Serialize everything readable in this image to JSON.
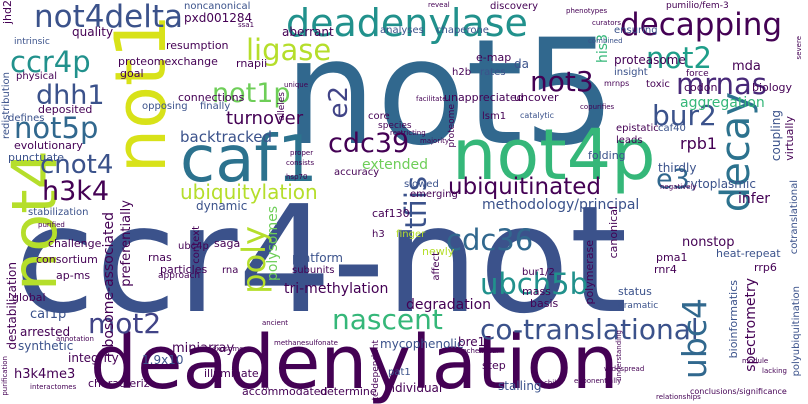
{
  "words": {
    "ccr4_not": "ccr4-not",
    "not5": "not5",
    "deadenylation": "deadenylation",
    "not4p": "not4p",
    "caf1": "caf1",
    "not1": "not1",
    "not4": "not4",
    "deadenylase": "deadenylase",
    "not4delta": "not4delta",
    "decapping": "decapping",
    "ccr4p": "ccr4p",
    "ligase": "ligase",
    "not2": "not2",
    "mrnas": "mrnas",
    "not3": "not3",
    "not1p": "not1p",
    "dhh1": "dhh1",
    "not5p": "not5p",
    "cdc39": "cdc39",
    "e2": "e2",
    "bur2": "bur2",
    "decay": "decay",
    "cnot4": "cnot4",
    "h3k4": "h3k4",
    "ubiquitinated": "ubiquitinated",
    "e3": "e3",
    "cdc36": "cdc36",
    "tfiis": "tfiis",
    "poly": "poly",
    "ubiquitylation": "ubiquitylation",
    "ubch5b": "ubch5b",
    "nascent": "nascent",
    "co_translational": "co-translational",
    "mot2": "mot2",
    "elongation": "elongation",
    "ubc4": "ubc4",
    "mrna": "mrna",
    "mrna_hyphen": "m-rna",
    "turnover": "turnover",
    "backtracked": "backtracked",
    "pxd001284": "pxd001284",
    "noncanonical": "noncanonical",
    "quality": "quality",
    "resumption": "resumption",
    "proteomexchange": "proteomexchange",
    "aberrant": "aberrant",
    "analyses": "analyses",
    "chaperone": "chaperone",
    "discovery": "discovery",
    "ensuring": "ensuring",
    "proteasome": "proteasome",
    "mda": "mda",
    "his3": "his3",
    "aggregation": "aggregation",
    "rpb1": "rpb1",
    "caf40": "caf40",
    "polysomes": "polysomes",
    "extended": "extended",
    "methodology_principal": "methodology/principal",
    "ribosome_associated": "ribosome-associated",
    "preferentially": "preferentially",
    "dynamic": "dynamic",
    "caf130": "caf130",
    "nonstop": "nonstop",
    "heat_repeat": "heat-repeat",
    "infer": "infer",
    "cytoplasmic": "cytoplasmic",
    "thirdly": "thirdly",
    "folding": "folding",
    "canonical": "canonical",
    "pma1": "pma1",
    "rnr4": "rnr4",
    "rrp6": "rrp6",
    "status": "status",
    "dramatic": "dramatic",
    "bioinformatics": "bioinformatics",
    "spectrometry": "spectrometry",
    "tri_methylation": "tri-methylation",
    "degradation": "degradation",
    "mycophenolic": "mycophenolic",
    "bre1": "bre1",
    "step": "step",
    "pat1": "pat1",
    "stalling": "stalling",
    "individual": "individual",
    "determine": "determine",
    "accommodated": "accommodated",
    "miniarray": "miniarray",
    "one_point_nine": "1.9x10",
    "illuminate": "illuminate",
    "characterize": "characterize",
    "h3k4me3": "h3k4me3",
    "integrity": "integrity",
    "synthetic": "synthetic",
    "arrested": "arrested",
    "caf1p": "caf1p",
    "destabilization": "destabilization",
    "ap_ms": "ap-ms",
    "consortium": "consortium",
    "challenge": "challenge",
    "global": "global",
    "stabilization": "stabilization",
    "punctuate": "punctuate",
    "evolutionary": "evolutionary",
    "deposited": "deposited",
    "defines": "defines",
    "physical": "physical",
    "redistribution": "redistribution",
    "intrinsic": "intrinsic",
    "jhd2": "jhd2",
    "rnapii": "rnapii",
    "goal": "goal",
    "connections": "connections",
    "finally": "finally",
    "opposing": "opposing",
    "e_map": "e-map",
    "rates": "rates",
    "h2b": "h2b",
    "da": "da",
    "unappreciated": "unappreciated",
    "uncover": "uncover",
    "lsm1": "lsm1",
    "insight": "insight",
    "force": "force",
    "toxic": "toxic",
    "codon": "codon",
    "biology": "biology",
    "epistatic": "epistatic",
    "leads": "leads",
    "coupling": "coupling",
    "virtually": "virtually",
    "polyubiquitination": "polyubiquitination",
    "cotranslational": "cotranslational",
    "ubc4p": "ubc4p",
    "rnas": "rnas",
    "particles": "particles",
    "saga": "saga",
    "context": "context",
    "rna": "rna",
    "platform": "platform",
    "subunits": "subunits",
    "h3": "h3",
    "finger": "finger",
    "newly": "newly",
    "affect": "affect",
    "slowed": "slowed",
    "emerging": "emerging",
    "accuracy": "accuracy",
    "polymerase": "polymerase",
    "bur1_2": "bur1/2",
    "mass": "mass",
    "basis": "basis",
    "tc_dependent": "tc-dependent",
    "core": "core",
    "approach": "approach",
    "pumilio": "pumilio/fem-3",
    "mrnps": "mrnps",
    "alleles": "alleles",
    "proteome": "proteome",
    "species": "species",
    "catalytic": "catalytic",
    "copurifies": "copurifies",
    "combined": "combined",
    "curators": "curators",
    "phenotypes": "phenotypes",
    "severe": "severe",
    "ssa1": "ssa1",
    "unique": "unique",
    "restricting": "restricting",
    "majority": "majority",
    "consists": "consists",
    "hsp70": "hsp70",
    "purified": "purified",
    "negatively": "negatively",
    "module": "module",
    "lacking": "lacking",
    "conclusions": "conclusions/significance",
    "widespread": "widespread",
    "exponentially": "exponentially",
    "relationships": "relationships",
    "interactomes": "interactomes",
    "purification": "purification",
    "annotation": "annotation",
    "exosome": "exosome",
    "granules": "granules",
    "methanesulfonate": "methanesulfonate",
    "biochemical": "biochemical",
    "ancient": "ancient",
    "reveal": "reveal",
    "proper": "proper",
    "child": "child",
    "understanding": "understanding",
    "facilitate": "facilitate"
  },
  "colors": {
    "background": "#ffffff",
    "navy": "#3b528b",
    "dark_purple": "#440154",
    "purple": "#482878",
    "indigo": "#414487",
    "blue": "#31688e",
    "steel": "#2c728e",
    "teal": "#21918c",
    "sea": "#1f9e89",
    "green": "#35b779",
    "light_green": "#6ece58",
    "lime": "#b5de2b",
    "yellow": "#d8e219"
  }
}
